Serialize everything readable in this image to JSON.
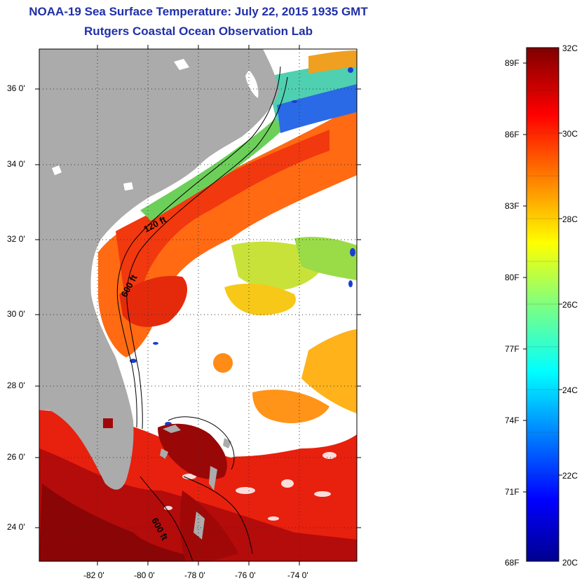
{
  "title_line1": "NOAA-19 Sea Surface Temperature:  July 22, 2015 1935 GMT",
  "title_line2": "Rutgers Coastal Ocean Observation Lab",
  "map": {
    "lat_ticks": [
      "36 0'",
      "34 0'",
      "32 0'",
      "30 0'",
      "28 0'",
      "26 0'",
      "24 0'"
    ],
    "lon_ticks": [
      "-82 0'",
      "-80 0'",
      "-78 0'",
      "-76 0'",
      "-74 0'"
    ],
    "contour_labels": [
      "120 ft",
      "600 ft",
      "600 ft"
    ],
    "colors": {
      "land": "#ababab",
      "cloud": "#ffffff"
    }
  },
  "colorbar": {
    "celsius_labels": [
      "32C",
      "30C",
      "28C",
      "26C",
      "24C",
      "22C",
      "20C"
    ],
    "fahrenheit_labels": [
      "89F",
      "86F",
      "83F",
      "80F",
      "77F",
      "74F",
      "71F",
      "68F"
    ],
    "min_c": 20,
    "max_c": 32
  }
}
